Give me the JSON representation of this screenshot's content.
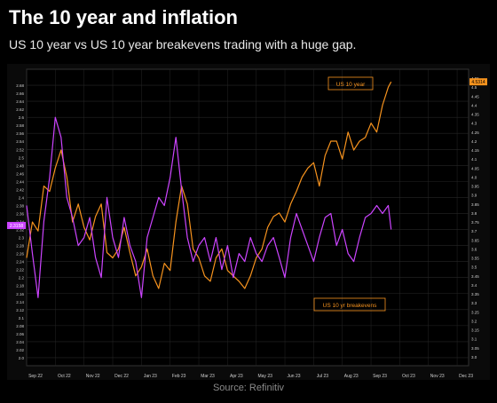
{
  "header": {
    "title": "The 10 year and inflation",
    "subtitle": "US 10 year vs US 10 year breakevens trading with a huge gap."
  },
  "footer": {
    "source": "Source: Refinitiv"
  },
  "colors": {
    "us10y": "#f7931e",
    "breakevens": "#cc44ff",
    "background": "#000000",
    "grid": "#262626",
    "text": "#cfcfcf"
  },
  "chart_data": {
    "type": "line",
    "title": "",
    "xlabel": "",
    "ylabel": "",
    "x_tick_labels": [
      "Sep 22",
      "Oct 22",
      "Nov 22",
      "Dec 22",
      "Jan 23",
      "Feb 23",
      "Mar 23",
      "Apr 23",
      "May 23",
      "Jun 23",
      "Jul 23",
      "Aug 23",
      "Sep 23",
      "Oct 23",
      "Nov 23",
      "Dec 23"
    ],
    "left_axis": {
      "series": "US 10 yr breakevens",
      "ylim": [
        1.98,
        2.72
      ],
      "ticks": [
        2.0,
        2.02,
        2.04,
        2.06,
        2.08,
        2.1,
        2.12,
        2.14,
        2.16,
        2.18,
        2.2,
        2.22,
        2.24,
        2.26,
        2.28,
        2.3,
        2.32,
        2.34,
        2.36,
        2.38,
        2.4,
        2.42,
        2.44,
        2.46,
        2.48,
        2.5,
        2.52,
        2.54,
        2.56,
        2.58,
        2.6,
        2.62,
        2.64,
        2.66,
        2.68
      ],
      "last_value_label": "2.3158"
    },
    "right_axis": {
      "series": "US 10 year",
      "ylim": [
        2.95,
        4.6
      ],
      "ticks": [
        3.0,
        3.05,
        3.1,
        3.15,
        3.2,
        3.25,
        3.3,
        3.35,
        3.4,
        3.45,
        3.5,
        3.55,
        3.6,
        3.65,
        3.7,
        3.75,
        3.8,
        3.85,
        3.9,
        3.95,
        4.0,
        4.05,
        4.1,
        4.15,
        4.2,
        4.25,
        4.3,
        4.35,
        4.4,
        4.45,
        4.5,
        4.55
      ],
      "last_value_label": "4.5314"
    },
    "series": [
      {
        "name": "US 10 year",
        "axis": "right",
        "color": "#f7931e",
        "x": [
          0.0,
          0.2,
          0.4,
          0.6,
          0.8,
          1.0,
          1.2,
          1.4,
          1.6,
          1.8,
          2.0,
          2.2,
          2.4,
          2.6,
          2.8,
          3.0,
          3.2,
          3.4,
          3.6,
          3.8,
          4.0,
          4.2,
          4.4,
          4.6,
          4.8,
          5.0,
          5.2,
          5.4,
          5.6,
          5.8,
          6.0,
          6.2,
          6.4,
          6.6,
          6.8,
          7.0,
          7.2,
          7.4,
          7.6,
          7.8,
          8.0,
          8.2,
          8.4,
          8.6,
          8.8,
          9.0,
          9.2,
          9.4,
          9.6,
          9.8,
          10.0,
          10.2,
          10.4,
          10.6,
          10.8,
          11.0,
          11.2,
          11.4,
          11.6,
          11.8,
          12.0,
          12.2,
          12.4,
          12.6,
          12.7
        ],
        "values": [
          3.55,
          3.75,
          3.7,
          3.95,
          3.92,
          4.05,
          4.15,
          4.0,
          3.75,
          3.85,
          3.72,
          3.65,
          3.78,
          3.85,
          3.58,
          3.55,
          3.6,
          3.72,
          3.58,
          3.45,
          3.5,
          3.6,
          3.45,
          3.38,
          3.52,
          3.48,
          3.75,
          3.95,
          3.85,
          3.6,
          3.55,
          3.45,
          3.42,
          3.55,
          3.6,
          3.48,
          3.45,
          3.42,
          3.38,
          3.45,
          3.55,
          3.6,
          3.72,
          3.78,
          3.8,
          3.75,
          3.85,
          3.92,
          4.0,
          4.05,
          4.08,
          3.95,
          4.12,
          4.2,
          4.2,
          4.1,
          4.25,
          4.15,
          4.2,
          4.22,
          4.3,
          4.25,
          4.4,
          4.5,
          4.53
        ]
      },
      {
        "name": "US 10 yr breakevens",
        "axis": "left",
        "color": "#cc44ff",
        "x": [
          0.0,
          0.2,
          0.4,
          0.6,
          0.8,
          1.0,
          1.2,
          1.4,
          1.6,
          1.8,
          2.0,
          2.2,
          2.4,
          2.6,
          2.8,
          3.0,
          3.2,
          3.4,
          3.6,
          3.8,
          4.0,
          4.2,
          4.4,
          4.6,
          4.8,
          5.0,
          5.2,
          5.4,
          5.6,
          5.8,
          6.0,
          6.2,
          6.4,
          6.6,
          6.8,
          7.0,
          7.2,
          7.4,
          7.6,
          7.8,
          8.0,
          8.2,
          8.4,
          8.6,
          8.8,
          9.0,
          9.2,
          9.4,
          9.6,
          9.8,
          10.0,
          10.2,
          10.4,
          10.6,
          10.8,
          11.0,
          11.2,
          11.4,
          11.6,
          11.8,
          12.0,
          12.2,
          12.4,
          12.6,
          12.7
        ],
        "values": [
          2.38,
          2.26,
          2.15,
          2.34,
          2.45,
          2.6,
          2.55,
          2.4,
          2.35,
          2.28,
          2.3,
          2.35,
          2.25,
          2.2,
          2.4,
          2.3,
          2.25,
          2.35,
          2.28,
          2.24,
          2.15,
          2.3,
          2.35,
          2.4,
          2.38,
          2.45,
          2.55,
          2.42,
          2.3,
          2.24,
          2.28,
          2.3,
          2.24,
          2.3,
          2.22,
          2.28,
          2.2,
          2.26,
          2.24,
          2.3,
          2.26,
          2.24,
          2.28,
          2.3,
          2.25,
          2.2,
          2.3,
          2.36,
          2.32,
          2.28,
          2.24,
          2.3,
          2.35,
          2.36,
          2.28,
          2.32,
          2.26,
          2.24,
          2.3,
          2.35,
          2.36,
          2.38,
          2.36,
          2.38,
          2.32
        ]
      }
    ],
    "annotations": [
      "US 10 year",
      "US 10 yr breakevens"
    ],
    "grid": true
  }
}
